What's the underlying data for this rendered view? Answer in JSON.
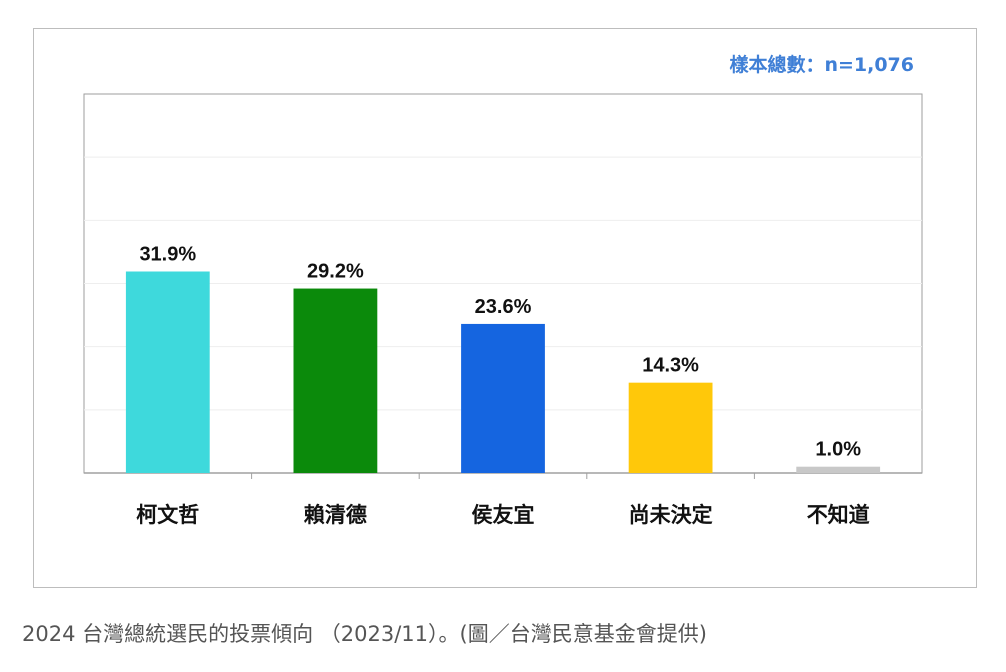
{
  "sample_note": "樣本總數：n=1,076",
  "caption": "2024 台灣總統選民的投票傾向 （2023/11）。(圖／台灣民意基金會提供)",
  "chart_data": {
    "type": "bar",
    "categories": [
      "柯文哲",
      "賴清德",
      "侯友宜",
      "尚未決定",
      "不知道"
    ],
    "values": [
      31.9,
      29.2,
      23.6,
      14.3,
      1.0
    ],
    "data_labels": [
      "31.9%",
      "29.2%",
      "23.6%",
      "14.3%",
      "1.0%"
    ],
    "colors": [
      "#3ed9dc",
      "#0b8a0b",
      "#1565e0",
      "#ffc80a",
      "#c8c8c8"
    ],
    "ylim": [
      0,
      60
    ],
    "grid": true,
    "title": "",
    "xlabel": "",
    "ylabel": ""
  }
}
